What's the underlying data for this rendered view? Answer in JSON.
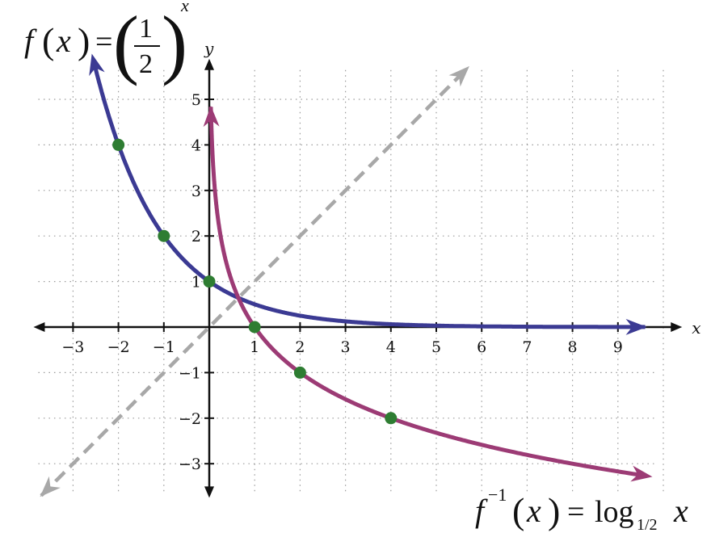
{
  "chart_data": {
    "type": "line",
    "xlabel": "x",
    "ylabel": "y",
    "xlim": [
      -3.8,
      10.2
    ],
    "ylim": [
      -3.5,
      5.5
    ],
    "grid": true,
    "x_ticks": [
      {
        "value": -3,
        "label": "−3"
      },
      {
        "value": -2,
        "label": "−2"
      },
      {
        "value": -1,
        "label": "−1"
      },
      {
        "value": 1,
        "label": "1"
      },
      {
        "value": 2,
        "label": "2"
      },
      {
        "value": 3,
        "label": "3"
      },
      {
        "value": 4,
        "label": "4"
      },
      {
        "value": 5,
        "label": "5"
      },
      {
        "value": 6,
        "label": "6"
      },
      {
        "value": 7,
        "label": "7"
      },
      {
        "value": 8,
        "label": "8"
      },
      {
        "value": 9,
        "label": "9"
      }
    ],
    "y_ticks": [
      {
        "value": 5,
        "label": "5"
      },
      {
        "value": 4,
        "label": "4"
      },
      {
        "value": 3,
        "label": "3"
      },
      {
        "value": 2,
        "label": "2"
      },
      {
        "value": 1,
        "label": "1"
      },
      {
        "value": -1,
        "label": "−1"
      },
      {
        "value": -2,
        "label": "−2"
      },
      {
        "value": -3,
        "label": "−3"
      }
    ],
    "series": [
      {
        "key": "exp",
        "color": "#3b3a93",
        "x_range": [
          -2.55,
          9.6
        ],
        "points": [
          {
            "x": -2,
            "y": 4
          },
          {
            "x": -1,
            "y": 2
          },
          {
            "x": 0,
            "y": 1
          }
        ]
      },
      {
        "key": "log",
        "color": "#9c3b75",
        "x_range": [
          0.035,
          9.6
        ],
        "points": [
          {
            "x": 1,
            "y": 0
          },
          {
            "x": 2,
            "y": -1
          },
          {
            "x": 4,
            "y": -2
          }
        ]
      },
      {
        "key": "identity",
        "color": "#a8a8a8",
        "dashed": true,
        "x_range": [
          -3.7,
          5.7
        ]
      }
    ],
    "point_color": "#2e7d32",
    "annotations": {
      "f": {
        "func": "f",
        "lp": "(",
        "var": "x",
        "rp": ")",
        "eq": "=",
        "num": "1",
        "den": "2",
        "exp": "x"
      },
      "finv": {
        "func": "f",
        "sup": "−1",
        "lp": "(",
        "var": "x",
        "rp": ")",
        "eq": "=",
        "log": "log",
        "base": "1/2",
        "arg": "x"
      }
    }
  }
}
